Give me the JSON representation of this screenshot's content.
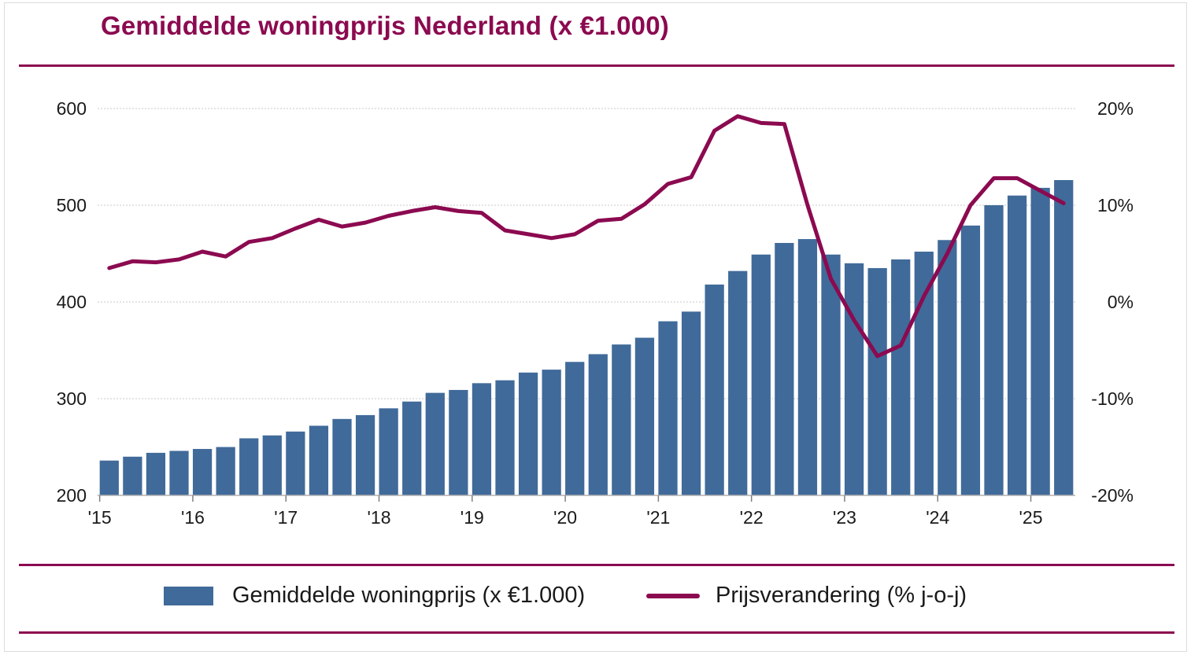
{
  "title": "Gemiddelde woningprijs Nederland (x €1.000)",
  "colors": {
    "bars": "#406a99",
    "line": "#8b0a50",
    "rules": "#8b0a50",
    "grid": "#c8c8c8"
  },
  "legend": {
    "bar_label": "Gemiddelde woningprijs (x €1.000)",
    "line_label": "Prijsverandering (% j-o-j)"
  },
  "chart_data": {
    "type": "bar",
    "title": "Gemiddelde woningprijs Nederland (x €1.000)",
    "xlabel": "",
    "ylabel": "",
    "ylim": [
      200,
      600
    ],
    "y2lim": [
      -20,
      20
    ],
    "grid": true,
    "legend_position": "bottom",
    "y_ticks": [
      "600",
      "500",
      "400",
      "300",
      "200"
    ],
    "y2_ticks": [
      "20%",
      "10%",
      "0%",
      "-10%",
      "-20%"
    ],
    "x_tick_labels": [
      "'15",
      "'16",
      "'17",
      "'18",
      "'19",
      "'20",
      "'21",
      "'22",
      "'23",
      "'24",
      "'25"
    ],
    "categories": [
      "2015 Q1",
      "2015 Q2",
      "2015 Q3",
      "2015 Q4",
      "2016 Q1",
      "2016 Q2",
      "2016 Q3",
      "2016 Q4",
      "2017 Q1",
      "2017 Q2",
      "2017 Q3",
      "2017 Q4",
      "2018 Q1",
      "2018 Q2",
      "2018 Q3",
      "2018 Q4",
      "2019 Q1",
      "2019 Q2",
      "2019 Q3",
      "2019 Q4",
      "2020 Q1",
      "2020 Q2",
      "2020 Q3",
      "2020 Q4",
      "2021 Q1",
      "2021 Q2",
      "2021 Q3",
      "2021 Q4",
      "2022 Q1",
      "2022 Q2",
      "2022 Q3",
      "2022 Q4",
      "2023 Q1",
      "2023 Q2",
      "2023 Q3",
      "2023 Q4",
      "2024 Q1",
      "2024 Q2",
      "2024 Q3",
      "2024 Q4",
      "2025 Q1",
      "2025 Q2"
    ],
    "series": [
      {
        "name": "Gemiddelde woningprijs (x €1.000)",
        "type": "bar",
        "axis": "left",
        "values": [
          236,
          240,
          244,
          246,
          248,
          250,
          259,
          262,
          266,
          272,
          279,
          283,
          290,
          297,
          306,
          309,
          316,
          319,
          327,
          330,
          338,
          346,
          356,
          363,
          380,
          390,
          418,
          432,
          449,
          461,
          465,
          449,
          440,
          435,
          444,
          452,
          464,
          479,
          500,
          510,
          518,
          526
        ]
      },
      {
        "name": "Prijsverandering (% j-o-j)",
        "type": "line",
        "axis": "right",
        "values": [
          3.5,
          4.2,
          4.1,
          4.4,
          5.2,
          4.7,
          6.2,
          6.6,
          7.6,
          8.5,
          7.8,
          8.2,
          8.9,
          9.4,
          9.8,
          9.4,
          9.2,
          7.4,
          7.0,
          6.6,
          7.0,
          8.4,
          8.6,
          10.1,
          12.2,
          12.9,
          17.7,
          19.2,
          18.5,
          18.4,
          10.0,
          2.4,
          -1.9,
          -5.6,
          -4.5,
          0.6,
          5.0,
          10.0,
          12.8,
          12.8,
          11.5,
          10.2
        ]
      }
    ]
  }
}
